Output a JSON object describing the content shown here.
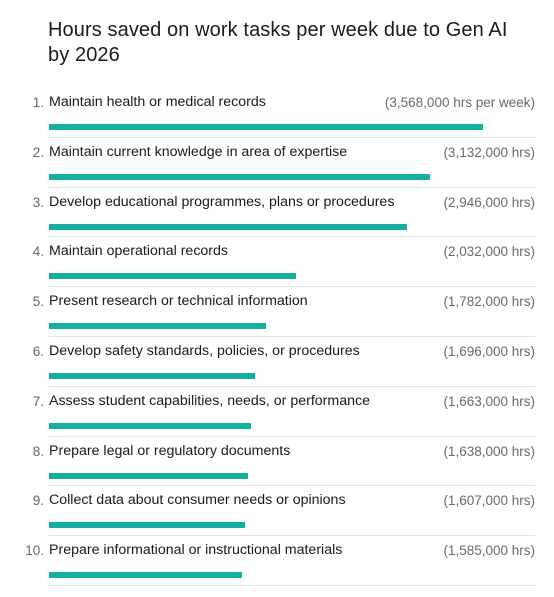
{
  "chart_data": {
    "type": "bar",
    "orientation": "horizontal",
    "title": "Hours saved on work tasks per week due to Gen AI by 2026",
    "bar_color": "#17b0a0",
    "xlim": [
      0,
      3568000
    ],
    "items": [
      {
        "rank": "1.",
        "label": "Maintain health or medical records",
        "value": 3568000,
        "value_text": "(3,568,000 hrs per week)"
      },
      {
        "rank": "2.",
        "label": "Maintain current knowledge in area of expertise",
        "value": 3132000,
        "value_text": "(3,132,000 hrs)"
      },
      {
        "rank": "3.",
        "label": "Develop educational programmes, plans or procedures",
        "value": 2946000,
        "value_text": "(2,946,000 hrs)"
      },
      {
        "rank": "4.",
        "label": "Maintain operational records",
        "value": 2032000,
        "value_text": "(2,032,000 hrs)"
      },
      {
        "rank": "5.",
        "label": "Present research or technical information",
        "value": 1782000,
        "value_text": "(1,782,000 hrs)"
      },
      {
        "rank": "6.",
        "label": "Develop safety standards, policies, or procedures",
        "value": 1696000,
        "value_text": "(1,696,000 hrs)"
      },
      {
        "rank": "7.",
        "label": "Assess student capabilities, needs, or performance",
        "value": 1663000,
        "value_text": "(1,663,000 hrs)"
      },
      {
        "rank": "8.",
        "label": "Prepare legal or regulatory documents",
        "value": 1638000,
        "value_text": "(1,638,000 hrs)"
      },
      {
        "rank": "9.",
        "label": "Collect data about consumer needs or opinions",
        "value": 1607000,
        "value_text": "(1,607,000 hrs)"
      },
      {
        "rank": "10.",
        "label": "Prepare informational or instructional materials",
        "value": 1585000,
        "value_text": "(1,585,000 hrs)"
      }
    ]
  }
}
